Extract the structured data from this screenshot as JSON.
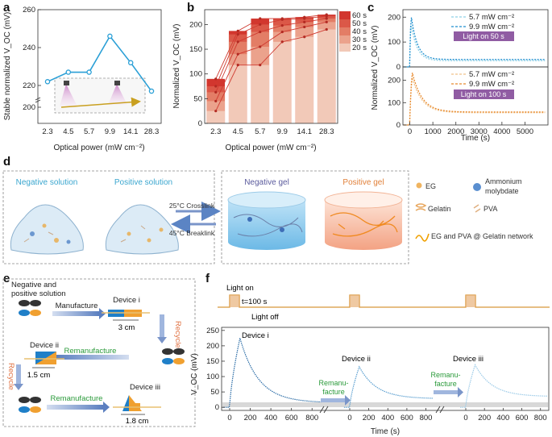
{
  "panels": {
    "a": "a",
    "b": "b",
    "c": "c",
    "d": "d",
    "e": "e",
    "f": "f"
  },
  "chart_data": [
    {
      "id": "a",
      "type": "line",
      "title": "",
      "xlabel": "Optical power (mW cm⁻²)",
      "ylabel": "Stable normalized V_OC (mV)",
      "categories": [
        "2.3",
        "4.5",
        "5.7",
        "9.9",
        "14.1",
        "28.3"
      ],
      "values": [
        222,
        227,
        227,
        246,
        232,
        217
      ],
      "ylim": [
        200,
        260
      ],
      "yticks": [
        "200",
        "220",
        "240",
        "260"
      ],
      "color": "#2a9fd6"
    },
    {
      "id": "b",
      "type": "bar",
      "xlabel": "Optical power (mW cm⁻²)",
      "ylabel": "Normalized V_OC (mV)",
      "categories": [
        "2.3",
        "4.5",
        "5.7",
        "9.9",
        "14.1",
        "28.3"
      ],
      "ylim": [
        0,
        230
      ],
      "yticks": [
        "0",
        "50",
        "100",
        "150",
        "200"
      ],
      "legend": [
        "60 s",
        "50 s",
        "40 s",
        "30 s",
        "20 s"
      ],
      "series": [
        {
          "name": "20 s",
          "values": [
            25,
            118,
            118,
            165,
            175,
            190
          ],
          "color": "#f2c9b8"
        },
        {
          "name": "30 s",
          "values": [
            45,
            140,
            155,
            185,
            195,
            205
          ],
          "color": "#eba28c"
        },
        {
          "name": "40 s",
          "values": [
            63,
            165,
            185,
            198,
            205,
            212
          ],
          "color": "#e37d66"
        },
        {
          "name": "50 s",
          "values": [
            75,
            180,
            200,
            210,
            212,
            217
          ],
          "color": "#db5848"
        },
        {
          "name": "60 s",
          "values": [
            90,
            187,
            212,
            212,
            215,
            220
          ],
          "color": "#d2362e"
        }
      ]
    },
    {
      "id": "c-top",
      "type": "line",
      "xlabel": "",
      "ylabel": "Normalized V_OC (mV)",
      "xlim": [
        -300,
        6000
      ],
      "ylim": [
        0,
        230
      ],
      "yticks": [
        "0",
        "100",
        "200"
      ],
      "legend": [
        "5.7 mW cm⁻²",
        "9.9 mW cm⁻²"
      ],
      "annotation": "Light on 50 s",
      "series": [
        {
          "name": "5.7 mW cm⁻²",
          "peak": 175,
          "baseline": 25,
          "color": "#8ed0e6"
        },
        {
          "name": "9.9 mW cm⁻²",
          "peak": 212,
          "baseline": 30,
          "color": "#1f8fcf"
        }
      ]
    },
    {
      "id": "c-bottom",
      "type": "line",
      "xlabel": "Time (s)",
      "ylabel": "Normalized V_OC (mV)",
      "xlim": [
        -300,
        6000
      ],
      "ylim": [
        0,
        260
      ],
      "yticks": [
        "0",
        "100",
        "200"
      ],
      "xticks": [
        "0",
        "1000",
        "2000",
        "3000",
        "4000",
        "5000"
      ],
      "legend": [
        "5.7 mW cm⁻²",
        "9.9 mW cm⁻²"
      ],
      "annotation": "Light on 100 s",
      "series": [
        {
          "name": "5.7 mW cm⁻²",
          "peak": 215,
          "baseline": 55,
          "color": "#f0c28a"
        },
        {
          "name": "9.9 mW cm⁻²",
          "peak": 238,
          "baseline": 58,
          "color": "#e88a2e"
        }
      ]
    },
    {
      "id": "f",
      "type": "line",
      "xlabel": "Time (s)",
      "ylabel": "V_OC (mV)",
      "ylim": [
        -10,
        260
      ],
      "yticks": [
        "0",
        "50",
        "100",
        "150",
        "200",
        "250"
      ],
      "xticks": [
        "0",
        "200",
        "400",
        "600",
        "800"
      ],
      "series": [
        {
          "name": "Device i",
          "peak": 225,
          "baseline": 15,
          "color": "#2f6fa8"
        },
        {
          "name": "Device ii",
          "peak": 132,
          "baseline": 28,
          "color": "#5b9fd0"
        },
        {
          "name": "Device iii",
          "peak": 138,
          "baseline": 35,
          "color": "#9ccbe8"
        }
      ]
    }
  ],
  "d": {
    "neg_solution": "Negative solution",
    "pos_solution": "Positive solution",
    "crosslink": "25°C Crosslink",
    "breaklink": "45°C Breaklink",
    "neg_gel": "Negative gel",
    "pos_gel": "Positive gel",
    "legend_eg": "EG",
    "legend_am1": "Ammonium",
    "legend_am2": "molybdate",
    "legend_gelatin": "Gelatin",
    "legend_pva": "PVA",
    "legend_network": "EG and PVA @ Gelatin network"
  },
  "e": {
    "neg_pos_1": "Negative and",
    "neg_pos_2": "positive  solution",
    "manufacture": "Manufacture",
    "device_i": "Device i",
    "len_i": "3 cm",
    "recycle": "Recycle",
    "remanufacture": "Remanufacture",
    "device_ii": "Device ii",
    "len_ii": "1.5 cm",
    "device_iii": "Device iii",
    "len_iii": "1.8 cm"
  },
  "f": {
    "light_on": "Light on",
    "t100": "t=100 s",
    "light_off": "Light off",
    "dev_i": "Device i",
    "dev_ii": "Device ii",
    "dev_iii": "Device iii",
    "reman1": "Remanu-",
    "reman2": "facture"
  }
}
